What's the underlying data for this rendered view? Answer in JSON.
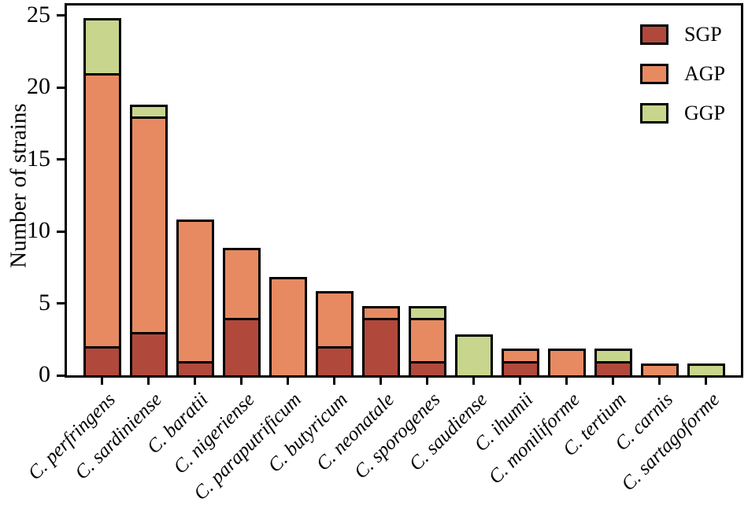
{
  "figure": {
    "y_axis_title": "Number of strains"
  },
  "chart_data": {
    "type": "bar",
    "stacked": true,
    "title": "",
    "xlabel": "",
    "ylabel": "Number of strains",
    "ylim": [
      0,
      25.7
    ],
    "yticks": [
      0,
      5,
      10,
      15,
      20,
      25
    ],
    "grid": false,
    "legend_position": "upper right",
    "bar_edge_color": "#000000",
    "categories": [
      "C. perfringens",
      "C. sardiniense",
      "C. baratii",
      "C. nigeriense",
      "C. paraputrificum",
      "C. butyricum",
      "C. neonatale",
      "C. sporogenes",
      "C. saudiense",
      "C. ihumii",
      "C. moniliforme",
      "C. tertium",
      "C. carnis",
      "C. sartagoforme"
    ],
    "series": [
      {
        "name": "SGP",
        "color": "#b0493c",
        "values": [
          2,
          3,
          1,
          4,
          0,
          2,
          4,
          1,
          0,
          1,
          0,
          1,
          0,
          0
        ]
      },
      {
        "name": "AGP",
        "color": "#e78a62",
        "values": [
          19,
          15,
          10,
          5,
          7,
          4,
          1,
          3,
          0,
          1,
          2,
          0,
          1,
          0
        ]
      },
      {
        "name": "GGP",
        "color": "#c7d68c",
        "values": [
          4,
          1,
          0,
          0,
          0,
          0,
          0,
          1,
          3,
          0,
          0,
          1,
          0,
          1
        ]
      }
    ],
    "totals": [
      25,
      19,
      11,
      9,
      7,
      6,
      5,
      5,
      3,
      2,
      2,
      2,
      1,
      1
    ]
  }
}
